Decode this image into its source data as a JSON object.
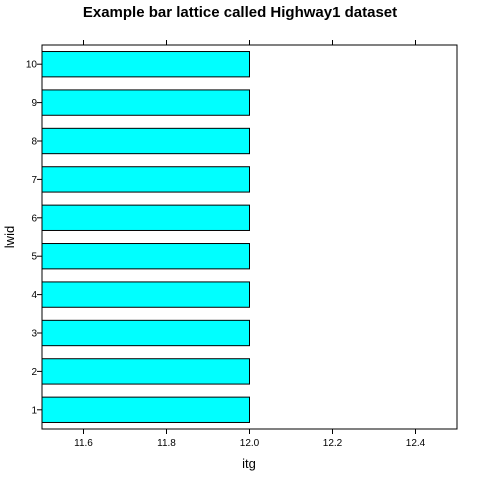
{
  "chart_data": {
    "type": "bar",
    "orientation": "horizontal",
    "title": "Example bar lattice called Highway1 dataset",
    "xlabel": "itg",
    "ylabel": "lwid",
    "categories": [
      "1",
      "2",
      "3",
      "4",
      "5",
      "6",
      "7",
      "8",
      "9",
      "10"
    ],
    "values": [
      12,
      12,
      12,
      12,
      12,
      12,
      12,
      12,
      12,
      12
    ],
    "xlim": [
      11.5,
      12.5
    ],
    "x_ticks": [
      11.6,
      11.8,
      12.0,
      12.2,
      12.4
    ],
    "x_tick_labels": [
      "11.6",
      "11.8",
      "12.0",
      "12.2",
      "12.4"
    ],
    "grid": false,
    "bar_color": "#00ffff",
    "bar_edge_color": "#000000"
  }
}
